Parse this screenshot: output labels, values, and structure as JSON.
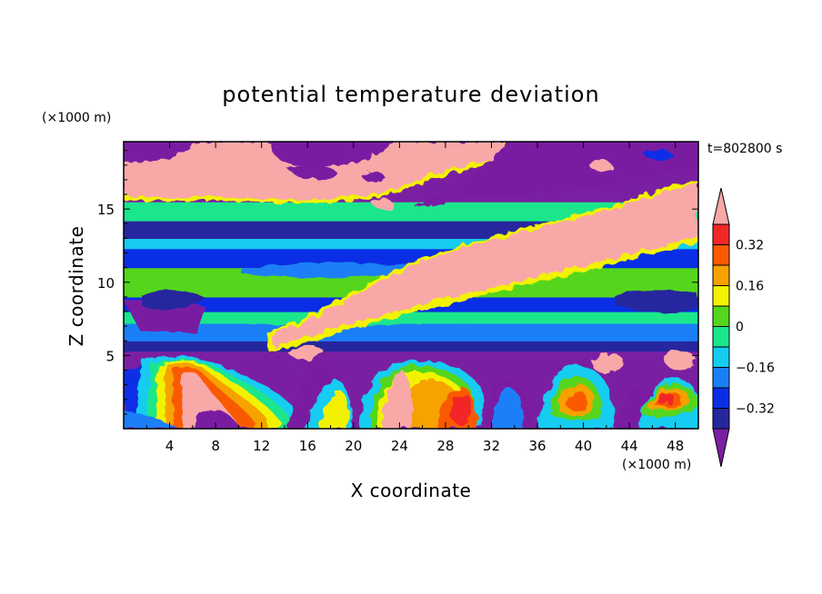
{
  "chart_data": {
    "type": "heatmap",
    "title": "potential temperature deviation",
    "xlabel": "X coordinate",
    "ylabel": "Z coordinate",
    "x_unit": "(×1000 m)",
    "y_unit": "(×1000 m)",
    "time_label": "t=802800 s",
    "xlim": [
      0,
      50
    ],
    "ylim": [
      0,
      19.6
    ],
    "x_ticks": [
      4,
      8,
      12,
      16,
      20,
      24,
      28,
      32,
      36,
      40,
      44,
      48
    ],
    "y_ticks": [
      5,
      10,
      15
    ],
    "colorbar": {
      "levels": [
        -0.4,
        -0.32,
        -0.24,
        -0.16,
        -0.08,
        0,
        0.08,
        0.16,
        0.24,
        0.32,
        0.4
      ],
      "labels": [
        "0.32",
        "0.16",
        "0",
        "−0.16",
        "−0.32"
      ],
      "label_values": [
        0.32,
        0.16,
        0,
        -0.16,
        -0.32
      ],
      "colors": [
        "#7a1fa2",
        "#26269e",
        "#0a2ee6",
        "#1a7ff7",
        "#15ccf0",
        "#1be68c",
        "#55d61c",
        "#f2f200",
        "#f6a200",
        "#f95a00",
        "#f22828",
        "#f9a8a8"
      ],
      "extend": "both"
    },
    "layers": [
      {
        "z_range": [
          0,
          5.3
        ],
        "regime": "boundary layer: mixed warm plumes (0.08 to >0.40) and cold pools (<-0.40)"
      },
      {
        "z_range": [
          5.3,
          6.0
        ],
        "value": -0.4
      },
      {
        "z_range": [
          6.0,
          7.2
        ],
        "value": -0.2
      },
      {
        "z_range": [
          7.2,
          8.0
        ],
        "value": -0.05
      },
      {
        "z_range": [
          8.0,
          9.0
        ],
        "value": -0.3
      },
      {
        "z_range": [
          9.0,
          11.0
        ],
        "value": 0.02
      },
      {
        "z_range": [
          11.0,
          12.3
        ],
        "value": -0.25
      },
      {
        "z_range": [
          12.3,
          13.0
        ],
        "value": -0.1
      },
      {
        "z_range": [
          13.0,
          14.2
        ],
        "value": -0.4
      },
      {
        "z_range": [
          14.2,
          15.5
        ],
        "value": -0.08
      },
      {
        "z_range": [
          15.5,
          19.6
        ],
        "value": -0.42
      }
    ],
    "warm_band": "tilted band of positive deviation (>0.40) rising from about x=13, z=7 to x=50, z=17",
    "grid": false
  }
}
